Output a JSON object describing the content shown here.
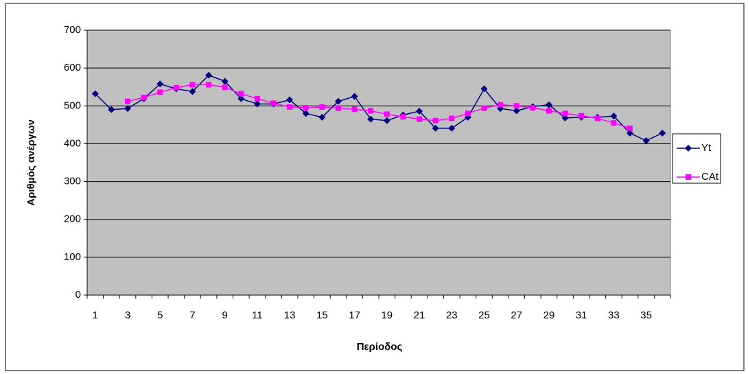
{
  "chart_data": {
    "type": "line",
    "xlabel": "Περίοδος",
    "ylabel": "Αριθμός ανέργων",
    "categories": [
      "1",
      null,
      "3",
      null,
      "5",
      null,
      "7",
      null,
      "9",
      null,
      "11",
      null,
      "13",
      null,
      "15",
      null,
      "17",
      null,
      "19",
      null,
      "21",
      null,
      "23",
      null,
      "25",
      null,
      "27",
      null,
      "29",
      null,
      "31",
      null,
      "33",
      null,
      "35",
      null
    ],
    "series": [
      {
        "name": "Yt",
        "color": "#000080",
        "marker": "diamond",
        "values": [
          532,
          490,
          493,
          519,
          558,
          545,
          538,
          581,
          565,
          519,
          505,
          505,
          516,
          480,
          470,
          512,
          525,
          465,
          461,
          476,
          486,
          441,
          441,
          470,
          545,
          493,
          487,
          498,
          503,
          468,
          470,
          470,
          473,
          428,
          408,
          428
        ]
      },
      {
        "name": "CAt",
        "color": "#FF00FF",
        "marker": "square",
        "values": [
          null,
          null,
          512,
          522,
          536,
          548,
          556,
          556,
          549,
          532,
          519,
          507,
          497,
          495,
          497,
          494,
          491,
          487,
          478,
          471,
          465,
          461,
          467,
          480,
          494,
          503,
          500,
          495,
          487,
          480,
          474,
          467,
          455,
          441,
          null,
          null
        ]
      }
    ],
    "ylim": [
      0,
      700
    ],
    "yticks": [
      0,
      100,
      200,
      300,
      400,
      500,
      600,
      700
    ],
    "grid": true,
    "legend": "right",
    "plot_background": "#C0C0C0"
  }
}
